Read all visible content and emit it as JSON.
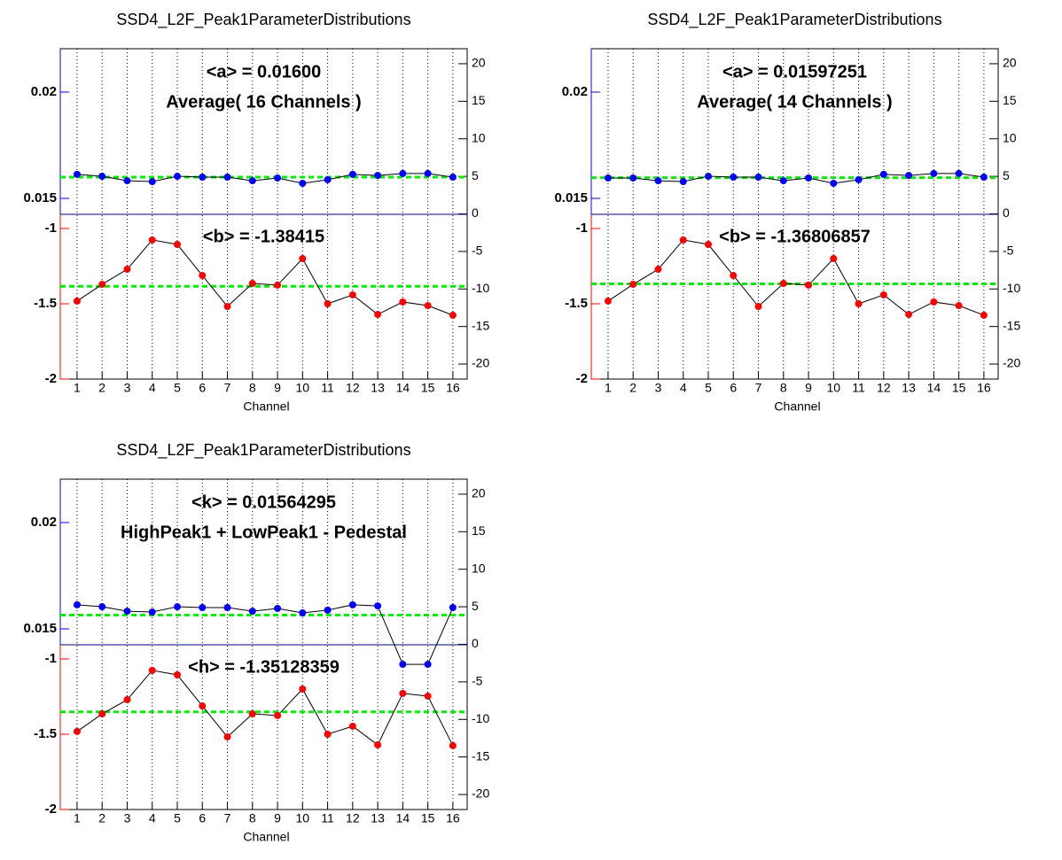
{
  "chart_data": [
    {
      "type": "line",
      "title": "SSD4_L2F_Peak1ParameterDistributions",
      "x_label": "Channel",
      "x": [
        1,
        2,
        3,
        4,
        5,
        6,
        7,
        8,
        9,
        10,
        11,
        12,
        13,
        14,
        15,
        16
      ],
      "xlim": [
        0.33,
        16.57
      ],
      "xticks": [
        1,
        2,
        3,
        4,
        5,
        6,
        7,
        8,
        9,
        10,
        11,
        12,
        13,
        14,
        15,
        16
      ],
      "y2lim": [
        -22,
        22
      ],
      "y2ticks": [
        -20,
        -15,
        -10,
        -5,
        0,
        5,
        10,
        15,
        20
      ],
      "mean_color": "#00ee00",
      "series": [
        {
          "color": "#0000ff",
          "ylim": [
            0.01425,
            0.02204
          ],
          "yticks": [
            0.015,
            0.02
          ],
          "values": [
            0.01613,
            0.01604,
            0.01583,
            0.01579,
            0.01604,
            0.016,
            0.016,
            0.01583,
            0.01596,
            0.01571,
            0.01588,
            0.01613,
            0.01608,
            0.01617,
            0.01617,
            0.016
          ],
          "mean": 0.016,
          "mean_label": "<a> = 0.01600",
          "note": "Average( 16 Channels )"
        },
        {
          "color": "#ff0000",
          "ylim": [
            -2,
            -0.906
          ],
          "yticks": [
            -2,
            -1.5,
            -1
          ],
          "values": [
            -1.482,
            -1.371,
            -1.271,
            -1.076,
            -1.106,
            -1.312,
            -1.518,
            -1.365,
            -1.376,
            -1.2,
            -1.5,
            -1.441,
            -1.571,
            -1.488,
            -1.512,
            -1.576
          ],
          "mean": -1.38415,
          "mean_label": "<b> = -1.38415"
        }
      ]
    },
    {
      "type": "line",
      "title": "SSD4_L2F_Peak1ParameterDistributions",
      "x_label": "Channel",
      "x": [
        1,
        2,
        3,
        4,
        5,
        6,
        7,
        8,
        9,
        10,
        11,
        12,
        13,
        14,
        15,
        16
      ],
      "xlim": [
        0.33,
        16.57
      ],
      "xticks": [
        1,
        2,
        3,
        4,
        5,
        6,
        7,
        8,
        9,
        10,
        11,
        12,
        13,
        14,
        15,
        16
      ],
      "y2lim": [
        -22,
        22
      ],
      "y2ticks": [
        -20,
        -15,
        -10,
        -5,
        0,
        5,
        10,
        15,
        20
      ],
      "mean_color": "#00ee00",
      "series": [
        {
          "color": "#0000ff",
          "ylim": [
            0.01425,
            0.02204
          ],
          "yticks": [
            0.015,
            0.02
          ],
          "values": [
            0.01596,
            0.01596,
            0.01583,
            0.01579,
            0.01604,
            0.016,
            0.016,
            0.01583,
            0.01596,
            0.01571,
            0.01588,
            0.01613,
            0.01608,
            0.01617,
            0.01617,
            0.016
          ],
          "mean": 0.01597251,
          "mean_label": "<a> = 0.01597251",
          "note": "Average( 14 Channels )"
        },
        {
          "color": "#ff0000",
          "ylim": [
            -2,
            -0.906
          ],
          "yticks": [
            -2,
            -1.5,
            -1
          ],
          "values": [
            -1.482,
            -1.371,
            -1.271,
            -1.076,
            -1.106,
            -1.312,
            -1.518,
            -1.365,
            -1.376,
            -1.2,
            -1.5,
            -1.441,
            -1.571,
            -1.488,
            -1.512,
            -1.576
          ],
          "mean": -1.36806857,
          "mean_label": "<b> = -1.36806857"
        }
      ]
    },
    {
      "type": "line",
      "title": "SSD4_L2F_Peak1ParameterDistributions",
      "x_label": "Channel",
      "x": [
        1,
        2,
        3,
        4,
        5,
        6,
        7,
        8,
        9,
        10,
        11,
        12,
        13,
        14,
        15,
        16
      ],
      "xlim": [
        0.33,
        16.57
      ],
      "xticks": [
        1,
        2,
        3,
        4,
        5,
        6,
        7,
        8,
        9,
        10,
        11,
        12,
        13,
        14,
        15,
        16
      ],
      "y2lim": [
        -22,
        22
      ],
      "y2ticks": [
        -20,
        -15,
        -10,
        -5,
        0,
        5,
        10,
        15,
        20
      ],
      "mean_color": "#00ee00",
      "series": [
        {
          "color": "#0000ff",
          "ylim": [
            0.01425,
            0.02204
          ],
          "yticks": [
            0.015,
            0.02
          ],
          "values": [
            0.01613,
            0.01604,
            0.01583,
            0.01579,
            0.01604,
            0.016,
            0.016,
            0.01583,
            0.01596,
            0.01575,
            0.01588,
            0.01613,
            0.01608,
            0.01333,
            0.01333,
            0.016
          ],
          "mean": 0.01564295,
          "mean_label": "<k> = 0.01564295",
          "note": "HighPeak1 + LowPeak1 - Pedestal"
        },
        {
          "color": "#ff0000",
          "ylim": [
            -2,
            -0.906
          ],
          "yticks": [
            -2,
            -1.5,
            -1
          ],
          "values": [
            -1.482,
            -1.365,
            -1.271,
            -1.076,
            -1.106,
            -1.312,
            -1.518,
            -1.365,
            -1.376,
            -1.2,
            -1.5,
            -1.447,
            -1.571,
            -1.229,
            -1.247,
            -1.576
          ],
          "mean": -1.35128359,
          "mean_label": "<h> = -1.35128359"
        }
      ]
    }
  ]
}
